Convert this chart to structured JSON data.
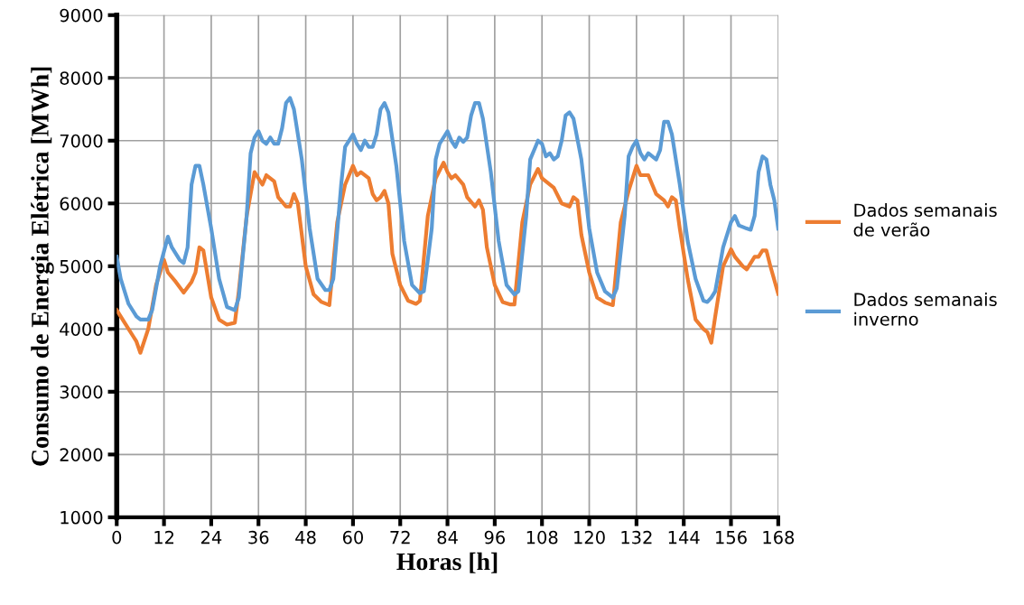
{
  "chart_data": {
    "type": "line",
    "xlabel": "Horas [h]",
    "ylabel": "Consumo de Energia Elétrica [MWh]",
    "xlim": [
      0,
      168
    ],
    "xticks": [
      0,
      12,
      24,
      36,
      48,
      60,
      72,
      84,
      96,
      108,
      120,
      132,
      144,
      156,
      168
    ],
    "ylim": [
      1000,
      9000
    ],
    "yticks": [
      1000,
      2000,
      3000,
      4000,
      5000,
      6000,
      7000,
      8000,
      9000
    ],
    "grid": true,
    "legend": "right",
    "marker": "none",
    "line_style": "solid",
    "series": [
      {
        "name": "Dados semanais\nde verão",
        "color": "#ed7d31",
        "x": [
          0,
          2,
          4,
          5,
          6,
          8,
          10,
          12,
          13,
          15,
          17,
          19,
          20,
          21,
          22,
          24,
          26,
          28,
          30,
          31,
          33,
          35,
          36,
          37,
          38,
          40,
          41,
          43,
          44,
          45,
          46,
          48,
          50,
          52,
          54,
          56,
          58,
          60,
          61,
          62,
          64,
          65,
          66,
          67,
          68,
          69,
          70,
          72,
          74,
          76,
          77,
          79,
          81,
          83,
          84,
          85,
          86,
          88,
          89,
          91,
          92,
          93,
          94,
          96,
          98,
          100,
          101,
          103,
          105,
          107,
          108,
          110,
          111,
          113,
          115,
          116,
          117,
          118,
          120,
          122,
          124,
          126,
          128,
          130,
          132,
          133,
          135,
          136,
          137,
          139,
          140,
          141,
          142,
          143,
          145,
          147,
          149,
          150,
          151,
          152,
          154,
          156,
          157,
          159,
          160,
          162,
          163,
          164,
          165,
          166,
          168
        ],
        "values": [
          4300,
          4100,
          3900,
          3800,
          3620,
          4000,
          4700,
          5100,
          4900,
          4750,
          4580,
          4750,
          4900,
          5300,
          5250,
          4500,
          4150,
          4070,
          4100,
          4600,
          5800,
          6500,
          6400,
          6300,
          6450,
          6350,
          6100,
          5950,
          5950,
          6150,
          6000,
          5000,
          4550,
          4430,
          4380,
          5700,
          6300,
          6600,
          6450,
          6500,
          6400,
          6150,
          6050,
          6100,
          6200,
          6000,
          5200,
          4700,
          4450,
          4400,
          4450,
          5800,
          6400,
          6650,
          6500,
          6400,
          6450,
          6300,
          6100,
          5950,
          6050,
          5900,
          5300,
          4700,
          4430,
          4390,
          4390,
          5700,
          6300,
          6550,
          6400,
          6300,
          6250,
          6000,
          5950,
          6100,
          6050,
          5500,
          4900,
          4500,
          4420,
          4380,
          5700,
          6200,
          6600,
          6450,
          6450,
          6300,
          6150,
          6050,
          5950,
          6100,
          6050,
          5600,
          4800,
          4150,
          4000,
          3950,
          3780,
          4200,
          5000,
          5270,
          5150,
          5000,
          4950,
          5150,
          5150,
          5250,
          5250,
          5000,
          4560
        ]
      },
      {
        "name": "Dados semanais\ninverno",
        "color": "#5b9bd5",
        "x": [
          0,
          1,
          3,
          5,
          6,
          7,
          8,
          9,
          11,
          13,
          14,
          16,
          17,
          18,
          19,
          20,
          21,
          22,
          24,
          26,
          28,
          30,
          31,
          33,
          34,
          35,
          36,
          37,
          38,
          39,
          40,
          41,
          42,
          43,
          44,
          45,
          47,
          49,
          51,
          53,
          54,
          55,
          57,
          58,
          60,
          61,
          62,
          63,
          64,
          65,
          66,
          67,
          68,
          69,
          71,
          73,
          75,
          77,
          78,
          80,
          81,
          82,
          84,
          85,
          86,
          87,
          88,
          89,
          90,
          91,
          92,
          93,
          95,
          97,
          99,
          101,
          102,
          104,
          105,
          106,
          107,
          108,
          109,
          110,
          111,
          112,
          113,
          114,
          115,
          116,
          118,
          120,
          122,
          124,
          126,
          127,
          129,
          130,
          131,
          132,
          133,
          134,
          135,
          136,
          137,
          138,
          139,
          140,
          141,
          143,
          145,
          147,
          149,
          150,
          151,
          152,
          154,
          156,
          157,
          158,
          160,
          161,
          162,
          163,
          164,
          165,
          166,
          167,
          168
        ],
        "values": [
          5150,
          4800,
          4400,
          4200,
          4150,
          4150,
          4150,
          4300,
          5000,
          5470,
          5300,
          5100,
          5050,
          5300,
          6300,
          6600,
          6600,
          6300,
          5600,
          4800,
          4350,
          4300,
          4500,
          5800,
          6800,
          7050,
          7150,
          7000,
          6950,
          7050,
          6950,
          6950,
          7200,
          7600,
          7680,
          7500,
          6700,
          5600,
          4800,
          4620,
          4620,
          4800,
          6300,
          6900,
          7100,
          6950,
          6850,
          7000,
          6900,
          6900,
          7100,
          7500,
          7600,
          7450,
          6600,
          5400,
          4700,
          4570,
          4600,
          5600,
          6700,
          6950,
          7150,
          7000,
          6900,
          7050,
          6980,
          7050,
          7400,
          7600,
          7600,
          7350,
          6500,
          5400,
          4700,
          4550,
          4600,
          5800,
          6700,
          6850,
          7000,
          6950,
          6750,
          6800,
          6700,
          6750,
          7000,
          7400,
          7450,
          7350,
          6700,
          5600,
          4900,
          4600,
          4500,
          4650,
          5800,
          6750,
          6900,
          7000,
          6800,
          6700,
          6800,
          6750,
          6700,
          6850,
          7300,
          7300,
          7100,
          6300,
          5400,
          4800,
          4450,
          4430,
          4500,
          4600,
          5300,
          5700,
          5800,
          5650,
          5600,
          5580,
          5800,
          6500,
          6750,
          6700,
          6300,
          6050,
          5600
        ]
      }
    ]
  }
}
